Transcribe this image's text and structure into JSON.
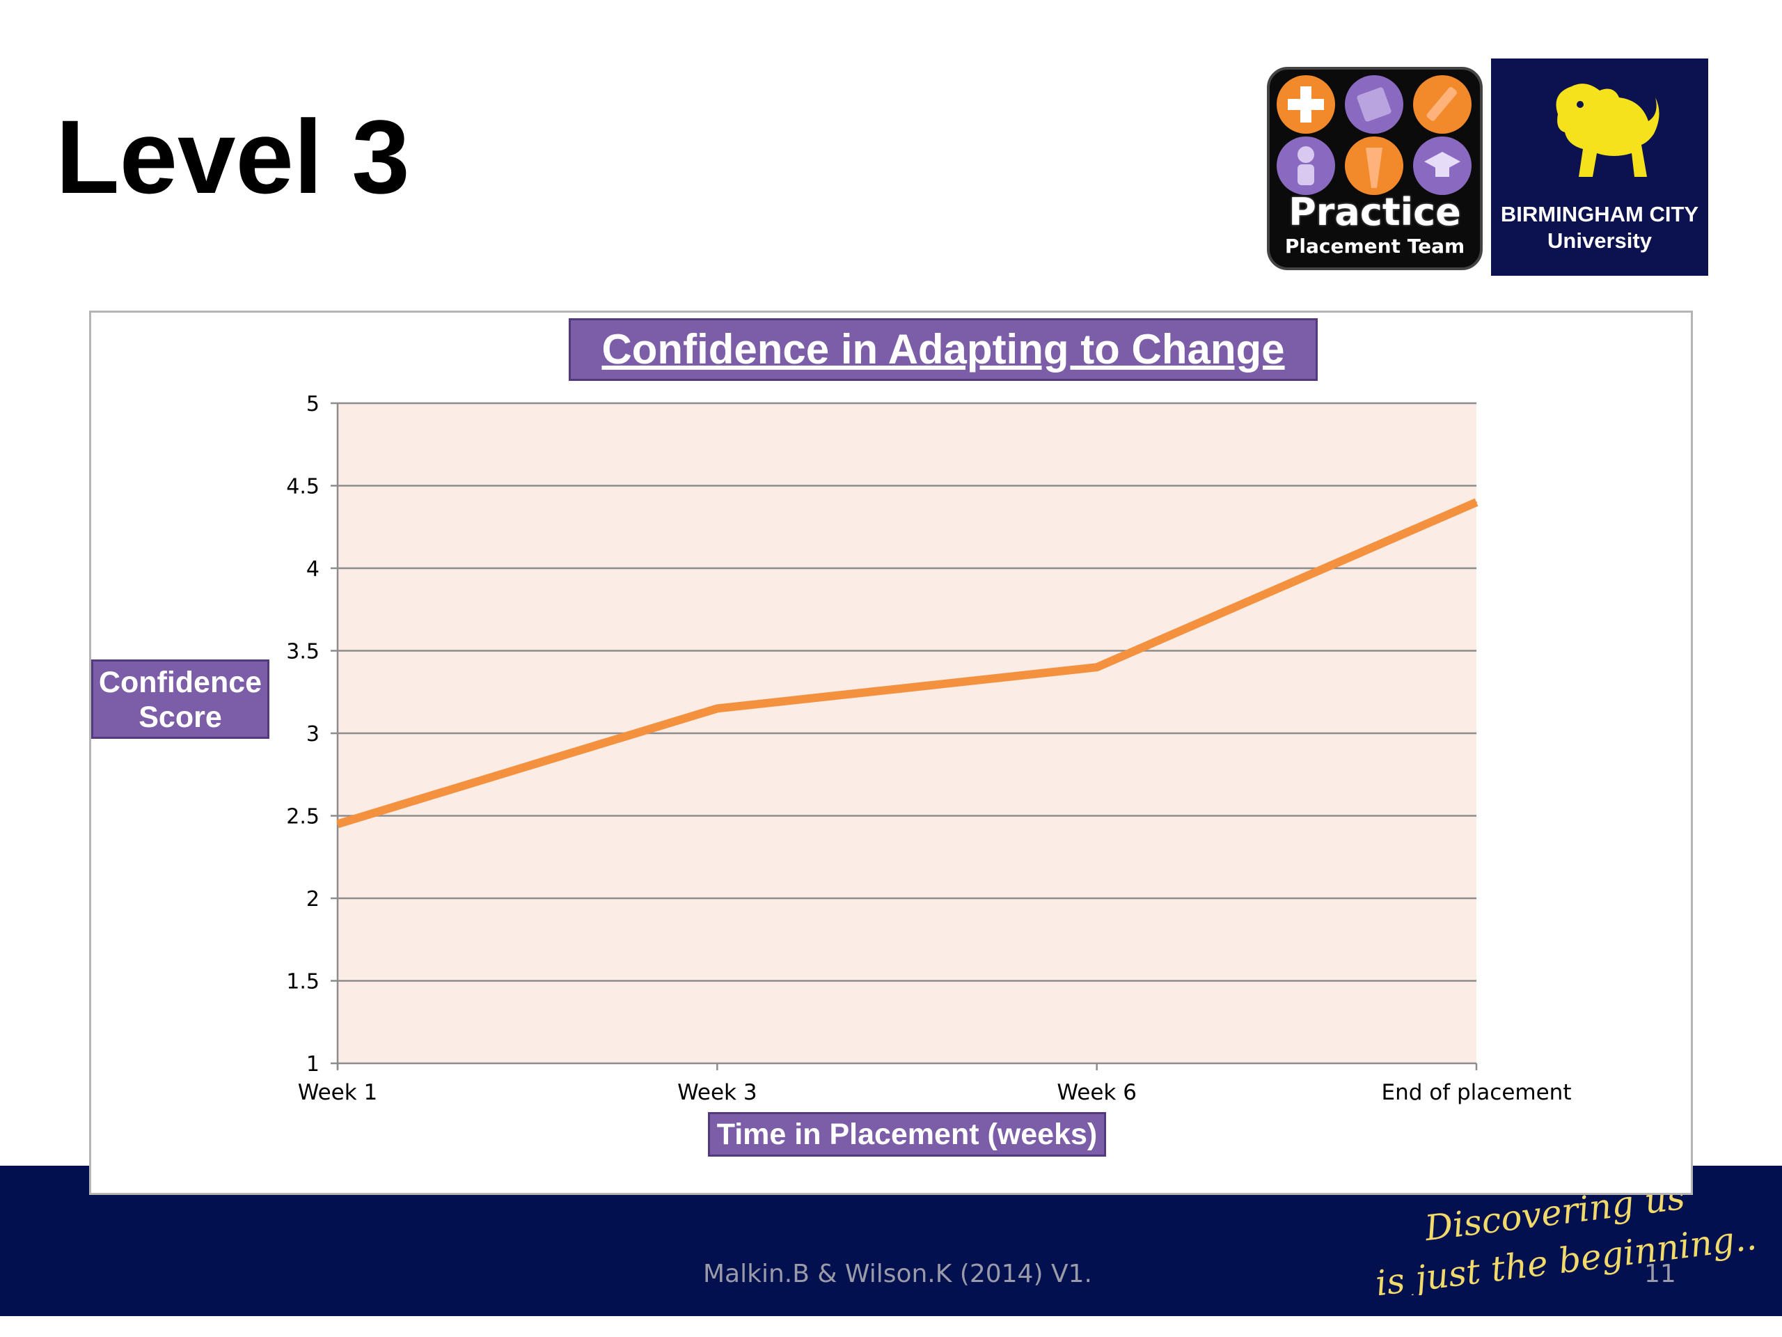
{
  "slide": {
    "title": "Level 3",
    "citation": "Malkin.B & Wilson.K (2014) V1.",
    "page_number": "11",
    "tagline": [
      "Discovering us",
      "is just the beginning..."
    ]
  },
  "logos": {
    "practice": {
      "brand": "Practice",
      "sub": "Placement Team"
    },
    "bcu": {
      "line1": "BIRMINGHAM CITY",
      "line2": "University"
    }
  },
  "colors": {
    "footer": "#03104f",
    "label_fill": "#7b5ea7",
    "plot_bg": "#fcece6",
    "series": "#f4913f",
    "tagline": "#f1d96a"
  },
  "chart_data": {
    "type": "line",
    "title": "Confidence in Adapting to Change",
    "xlabel": "Time in Placement (weeks)",
    "ylabel": "Confidence Score",
    "categories": [
      "Week 1",
      "Week 3",
      "Week 6",
      "End of placement"
    ],
    "series": [
      {
        "values": [
          2.45,
          3.15,
          3.4,
          4.4
        ]
      }
    ],
    "ylim": [
      1,
      5
    ],
    "yticks": [
      1,
      1.5,
      2,
      2.5,
      3,
      3.5,
      4,
      4.5,
      5
    ],
    "ytick_labels": [
      "1",
      "1.5",
      "2",
      "2.5",
      "3",
      "3.5",
      "4",
      "4.5",
      "5"
    ],
    "grid": true,
    "legend": "none"
  }
}
